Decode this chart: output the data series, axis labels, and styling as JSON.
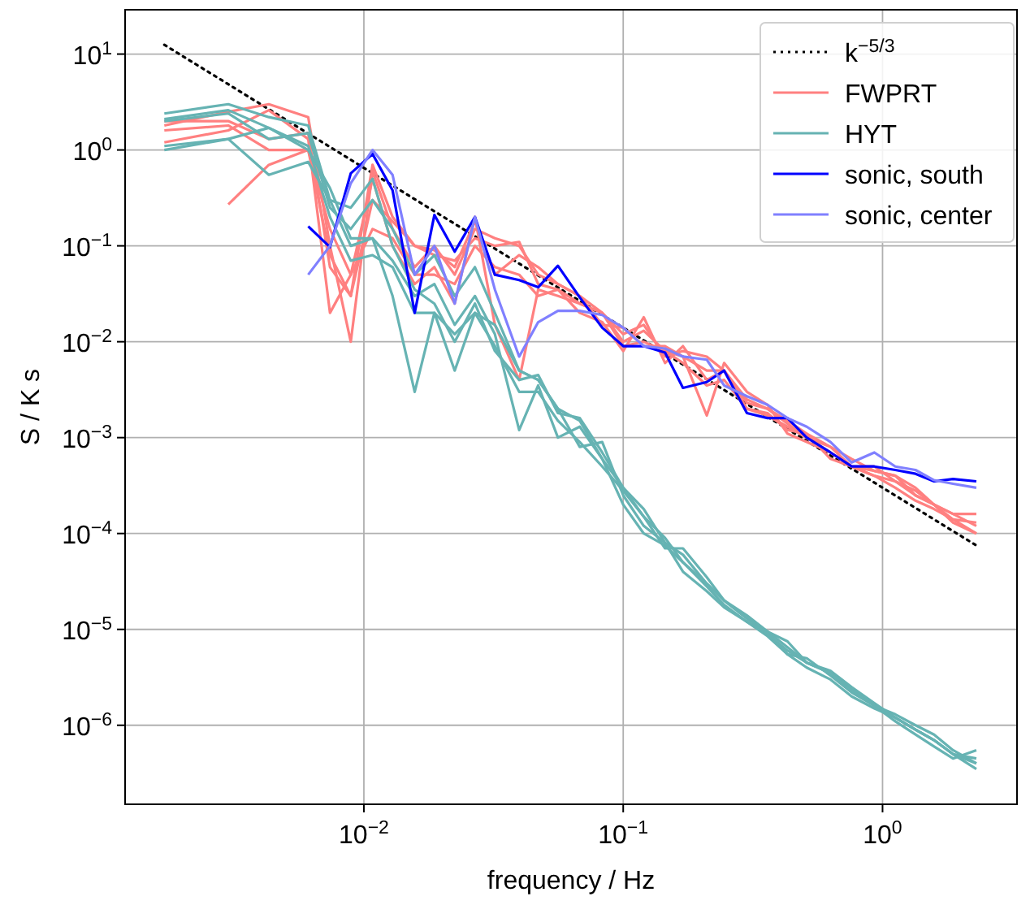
{
  "chart_data": {
    "type": "line",
    "xlabel": "frequency / Hz",
    "ylabel": "S / K s",
    "log": "xy",
    "grid": true,
    "legend": "top right",
    "xlim": [
      0.0012,
      3.3
    ],
    "ylim": [
      1.5e-07,
      29
    ],
    "xticks": [
      {
        "value": 0.01,
        "label": "10$^{−2}$"
      },
      {
        "value": 0.1,
        "label": "10$^{−1}$"
      },
      {
        "value": 1,
        "label": "10$^{0}$"
      }
    ],
    "yticks": [
      {
        "value": 1e-06,
        "label": "10$^{−6}$"
      },
      {
        "value": 1e-05,
        "label": "10$^{−5}$"
      },
      {
        "value": 0.0001,
        "label": "10$^{−4}$"
      },
      {
        "value": 0.001,
        "label": "10$^{−3}$"
      },
      {
        "value": 0.01,
        "label": "10$^{−2}$"
      },
      {
        "value": 0.1,
        "label": "10$^{−1}$"
      },
      {
        "value": 1,
        "label": "10$^{0}$"
      },
      {
        "value": 10,
        "label": "10$^{1}$"
      }
    ],
    "x": [
      0.0017,
      0.003,
      0.0043,
      0.0061,
      0.0074,
      0.0089,
      0.0108,
      0.0129,
      0.0157,
      0.0187,
      0.0224,
      0.0268,
      0.032,
      0.0397,
      0.047,
      0.056,
      0.068,
      0.083,
      0.1,
      0.12,
      0.145,
      0.17,
      0.21,
      0.245,
      0.3,
      0.36,
      0.43,
      0.51,
      0.63,
      0.76,
      0.93,
      1.12,
      1.34,
      1.58,
      1.87,
      2.3
    ],
    "series": [
      {
        "name": "k$^{−5/3}$",
        "color": "#000000",
        "line_style": "dotted",
        "x": [
          0.0017,
          2.3
        ],
        "values": [
          12.5,
          7.5e-05
        ]
      },
      {
        "name": "FWPRT",
        "color": "#ff8080",
        "values": [
          1.8,
          2.5,
          3.0,
          2.2,
          0.1,
          0.01,
          0.6,
          0.15,
          0.06,
          0.1,
          0.05,
          0.15,
          0.12,
          0.1,
          0.05,
          0.04,
          0.03,
          0.02,
          0.012,
          0.015,
          0.007,
          0.008,
          0.007,
          0.005,
          0.0025,
          0.002,
          0.0015,
          0.0011,
          0.0008,
          0.0006,
          0.00045,
          0.0004,
          0.0003,
          0.0002,
          0.00016,
          0.00012
        ]
      },
      {
        "color": "#ff8080",
        "values": [
          1.2,
          1.6,
          2.6,
          1.3,
          0.02,
          0.05,
          0.5,
          0.1,
          0.04,
          0.06,
          0.025,
          0.2,
          0.015,
          0.004,
          0.035,
          0.03,
          0.025,
          0.02,
          0.009,
          0.01,
          0.008,
          0.006,
          0.0035,
          0.004,
          0.002,
          0.0017,
          0.0013,
          0.001,
          0.0007,
          0.0005,
          0.0004,
          0.00035,
          0.00028,
          0.0002,
          0.00013,
          0.0001
        ]
      },
      {
        "color": "#ff8080",
        "values": [
          null,
          0.27,
          0.7,
          1.0,
          0.08,
          0.03,
          0.7,
          0.2,
          0.1,
          0.08,
          0.07,
          0.12,
          0.1,
          0.11,
          0.04,
          0.035,
          0.02,
          0.016,
          0.008,
          0.018,
          0.006,
          0.009,
          0.004,
          0.005,
          0.002,
          0.0018,
          0.0012,
          0.0011,
          0.0006,
          0.0005,
          0.0004,
          0.0003,
          0.00022,
          0.00018,
          0.00014,
          0.0001
        ]
      },
      {
        "color": "#ff8080",
        "values": [
          2.0,
          2.0,
          1.3,
          1.5,
          0.06,
          0.03,
          0.3,
          0.18,
          0.1,
          0.09,
          0.06,
          0.18,
          0.05,
          0.08,
          0.06,
          0.04,
          0.03,
          0.015,
          0.014,
          0.009,
          0.009,
          0.007,
          0.0017,
          0.006,
          0.003,
          0.0022,
          0.0011,
          0.0009,
          0.0007,
          0.0005,
          0.00045,
          0.0004,
          0.00025,
          0.0002,
          0.00016,
          0.00016
        ]
      },
      {
        "color": "#ff8080",
        "values": [
          1.6,
          1.8,
          1.0,
          1.0,
          0.15,
          0.05,
          0.15,
          0.12,
          0.05,
          0.05,
          0.04,
          0.1,
          0.06,
          0.05,
          0.03,
          0.035,
          0.025,
          0.02,
          0.01,
          0.013,
          0.008,
          0.007,
          0.005,
          0.005,
          0.0023,
          0.002,
          0.0014,
          0.001,
          0.0008,
          0.0005,
          0.0005,
          0.00035,
          0.00025,
          0.0002,
          0.00014,
          0.00013
        ]
      },
      {
        "name": "HYT",
        "color": "#66b3b3",
        "values": [
          2.4,
          3.0,
          2.2,
          1.8,
          0.3,
          0.25,
          0.5,
          0.1,
          0.035,
          0.025,
          0.01,
          0.025,
          0.008,
          0.004,
          0.0045,
          0.0018,
          0.0016,
          0.0007,
          0.0003,
          0.00018,
          8e-05,
          6e-05,
          3e-05,
          2e-05,
          1.3e-05,
          9.5e-06,
          6.5e-06,
          4.5e-06,
          3.7e-06,
          2.5e-06,
          1.7e-06,
          1.2e-06,
          9e-07,
          7e-07,
          5e-07,
          3.5e-07
        ]
      },
      {
        "color": "#66b3b3",
        "values": [
          2.1,
          2.6,
          1.7,
          1.0,
          0.4,
          0.12,
          0.12,
          0.07,
          0.03,
          0.04,
          0.015,
          0.03,
          0.012,
          0.0012,
          0.0035,
          0.001,
          0.0013,
          0.0006,
          0.0002,
          0.0001,
          7.5e-05,
          5e-05,
          2.8e-05,
          1.8e-05,
          1.2e-05,
          8.5e-06,
          5.5e-06,
          5e-06,
          3.3e-06,
          2.2e-06,
          1.6e-06,
          1.3e-06,
          1e-06,
          8e-07,
          5.5e-07,
          4e-07
        ]
      },
      {
        "color": "#66b3b3",
        "values": [
          1.1,
          1.3,
          1.7,
          1.1,
          0.2,
          0.07,
          0.08,
          0.06,
          0.02,
          0.02,
          0.005,
          0.02,
          0.009,
          0.003,
          0.003,
          0.0015,
          0.0009,
          0.0005,
          0.00028,
          0.00015,
          7e-05,
          7e-05,
          3.5e-05,
          2e-05,
          1.4e-05,
          9.5e-06,
          7.5e-06,
          4.5e-06,
          3.5e-06,
          2.4e-06,
          1.6e-06,
          1.1e-06,
          8e-07,
          6e-07,
          4.5e-07,
          5.5e-07
        ]
      },
      {
        "color": "#66b3b3",
        "values": [
          1.0,
          1.3,
          0.55,
          0.75,
          0.3,
          0.1,
          0.12,
          0.03,
          0.003,
          0.02,
          0.012,
          0.02,
          0.015,
          0.005,
          0.004,
          0.002,
          0.0008,
          0.0009,
          0.00025,
          0.00012,
          8e-05,
          4e-05,
          2.5e-05,
          1.7e-05,
          1.2e-05,
          9e-06,
          5.5e-06,
          4e-06,
          3e-06,
          2e-06,
          1.5e-06,
          1.2e-06,
          9e-07,
          7e-07,
          5e-07,
          4.5e-07
        ]
      },
      {
        "color": "#66b3b3",
        "values": [
          2.0,
          2.4,
          1.3,
          1.5,
          0.25,
          0.15,
          0.3,
          0.15,
          0.05,
          0.08,
          0.03,
          0.06,
          0.02,
          0.005,
          0.004,
          0.002,
          0.0015,
          0.0006,
          0.0003,
          0.00015,
          9e-05,
          5e-05,
          3e-05,
          2e-05,
          1.3e-05,
          9e-06,
          6e-06,
          4.5e-06,
          3.5e-06,
          2.3e-06,
          1.6e-06,
          1.2e-06,
          9e-07,
          7e-07,
          5e-07,
          4e-07
        ]
      },
      {
        "name": "sonic, south",
        "color": "#0000ff",
        "values": [
          null,
          null,
          null,
          0.16,
          0.097,
          0.57,
          0.91,
          0.38,
          0.02,
          0.21,
          0.087,
          0.2,
          0.05,
          0.044,
          0.037,
          0.062,
          0.029,
          0.014,
          0.009,
          0.009,
          0.0077,
          0.0033,
          0.0038,
          0.005,
          0.0018,
          0.0016,
          0.0016,
          0.001,
          0.0007,
          0.0005,
          0.0005,
          0.00046,
          0.00042,
          0.00035,
          0.00037,
          0.00035
        ]
      },
      {
        "name": "sonic, center",
        "color": "#8080ff",
        "values": [
          null,
          null,
          null,
          0.05,
          0.1,
          0.45,
          1.0,
          0.55,
          0.05,
          0.1,
          0.025,
          0.2,
          0.035,
          0.007,
          0.016,
          0.021,
          0.021,
          0.019,
          0.014,
          0.009,
          0.0085,
          0.007,
          0.0065,
          0.0035,
          0.0027,
          0.0022,
          0.0016,
          0.0013,
          0.0009,
          0.00055,
          0.0007,
          0.0005,
          0.00046,
          0.00036,
          0.00033,
          0.0003
        ]
      }
    ]
  }
}
